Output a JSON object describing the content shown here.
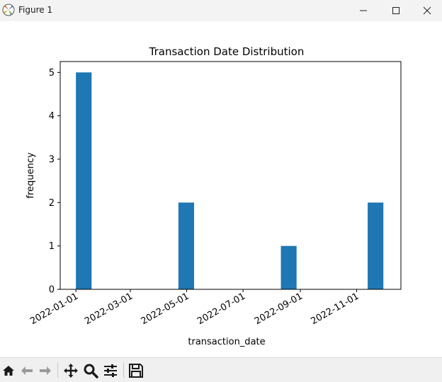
{
  "window": {
    "title": "Figure 1",
    "icons": [
      "matplotlib-icon",
      "minimize-icon",
      "maximize-icon",
      "close-icon"
    ]
  },
  "toolbar": {
    "buttons": [
      "home-icon",
      "back-icon",
      "forward-icon",
      "pan-icon",
      "zoom-icon",
      "configure-subplots-icon",
      "save-icon"
    ]
  },
  "colors": {
    "bar": "#1f77b4",
    "titlebar": "#f3f3f3",
    "toolbar": "#f0f0f0"
  },
  "chart_data": {
    "type": "bar",
    "title": "Transaction Date Distribution",
    "xlabel": "transaction_date",
    "ylabel": "frequency",
    "x_ticks": [
      "2022-01-01",
      "2022-03-01",
      "2022-05-01",
      "2022-07-01",
      "2022-09-01",
      "2022-11-01"
    ],
    "y_ticks": [
      "0",
      "1",
      "2",
      "3",
      "4",
      "5"
    ],
    "ylim": [
      0,
      5.25
    ],
    "xlim": [
      "2021-12-15",
      "2022-12-19"
    ],
    "grid": false,
    "bars": [
      {
        "start": "2022-01-01",
        "end": "2022-01-18",
        "value": 5
      },
      {
        "start": "2022-04-22",
        "end": "2022-05-09",
        "value": 2
      },
      {
        "start": "2022-08-11",
        "end": "2022-08-28",
        "value": 1
      },
      {
        "start": "2022-11-13",
        "end": "2022-11-30",
        "value": 2
      }
    ]
  }
}
